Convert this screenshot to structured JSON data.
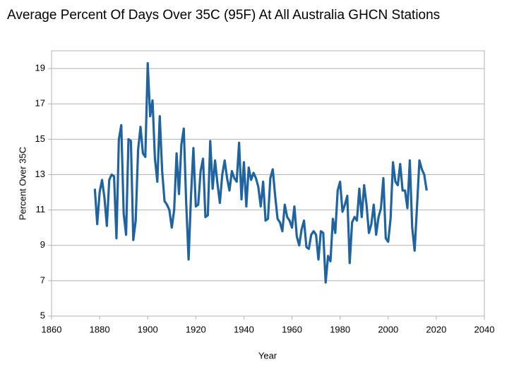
{
  "chart_data": {
    "type": "line",
    "title": "Average Percent Of Days Over 35C (95F) At All Australia GHCN Stations",
    "x_label": "Year",
    "y_label": "Percent Over 35C",
    "xlim": [
      1860,
      2040
    ],
    "xticks": [
      1860,
      1880,
      1900,
      1920,
      1940,
      1960,
      1980,
      2000,
      2020,
      2040
    ],
    "ylim": [
      5,
      20
    ],
    "yticks": [
      5,
      7,
      9,
      11,
      13,
      15,
      17,
      19
    ],
    "grid": true,
    "x": [
      1878,
      1879,
      1880,
      1881,
      1882,
      1883,
      1884,
      1885,
      1886,
      1887,
      1888,
      1889,
      1890,
      1891,
      1892,
      1893,
      1894,
      1895,
      1896,
      1897,
      1898,
      1899,
      1900,
      1901,
      1902,
      1903,
      1904,
      1905,
      1906,
      1907,
      1908,
      1909,
      1910,
      1911,
      1912,
      1913,
      1914,
      1915,
      1916,
      1917,
      1918,
      1919,
      1920,
      1921,
      1922,
      1923,
      1924,
      1925,
      1926,
      1927,
      1928,
      1929,
      1930,
      1931,
      1932,
      1933,
      1934,
      1935,
      1936,
      1937,
      1938,
      1939,
      1940,
      1941,
      1942,
      1943,
      1944,
      1945,
      1946,
      1947,
      1948,
      1949,
      1950,
      1951,
      1952,
      1953,
      1954,
      1955,
      1956,
      1957,
      1958,
      1959,
      1960,
      1961,
      1962,
      1963,
      1964,
      1965,
      1966,
      1967,
      1968,
      1969,
      1970,
      1971,
      1972,
      1973,
      1974,
      1975,
      1976,
      1977,
      1978,
      1979,
      1980,
      1981,
      1982,
      1983,
      1984,
      1985,
      1986,
      1987,
      1988,
      1989,
      1990,
      1991,
      1992,
      1993,
      1994,
      1995,
      1996,
      1997,
      1998,
      1999,
      2000,
      2001,
      2002,
      2003,
      2004,
      2005,
      2006,
      2007,
      2008,
      2009,
      2010,
      2011,
      2012,
      2013,
      2014,
      2015,
      2016
    ],
    "series": [
      {
        "name": "Percent Over 35C",
        "color": "#1f64a0",
        "values": [
          12.2,
          10.2,
          12.0,
          12.7,
          11.7,
          10.1,
          12.7,
          13.0,
          12.9,
          9.4,
          15.0,
          15.8,
          10.8,
          9.6,
          15.0,
          14.9,
          9.3,
          10.4,
          14.4,
          15.7,
          14.2,
          14.0,
          19.3,
          16.3,
          17.2,
          13.9,
          12.6,
          16.3,
          13.2,
          11.5,
          11.3,
          11.0,
          10.0,
          11.0,
          14.2,
          11.9,
          14.7,
          15.6,
          11.4,
          8.2,
          11.8,
          14.5,
          11.2,
          11.3,
          13.2,
          13.9,
          10.6,
          10.7,
          14.9,
          12.2,
          13.8,
          12.5,
          11.4,
          13.0,
          13.8,
          12.8,
          12.1,
          13.2,
          12.8,
          12.6,
          14.8,
          11.6,
          13.7,
          11.2,
          13.4,
          12.7,
          13.1,
          12.8,
          12.3,
          11.2,
          12.6,
          10.4,
          10.5,
          12.8,
          13.3,
          11.8,
          10.5,
          10.3,
          9.8,
          11.3,
          10.6,
          10.4,
          10.0,
          11.2,
          9.5,
          9.0,
          9.9,
          10.4,
          8.9,
          8.8,
          9.6,
          9.8,
          9.6,
          8.2,
          9.8,
          9.7,
          6.9,
          8.4,
          8.1,
          10.5,
          9.7,
          12.1,
          12.6,
          10.9,
          11.3,
          11.8,
          8.0,
          10.3,
          10.6,
          10.4,
          12.2,
          10.6,
          12.4,
          11.3,
          9.7,
          10.2,
          11.3,
          9.6,
          10.6,
          11.1,
          12.8,
          9.4,
          9.2,
          10.5,
          13.7,
          12.6,
          12.4,
          13.6,
          12.1,
          12.1,
          11.1,
          13.8,
          10.0,
          8.7,
          11.2,
          13.8,
          13.3,
          13.0,
          12.1
        ]
      }
    ]
  }
}
